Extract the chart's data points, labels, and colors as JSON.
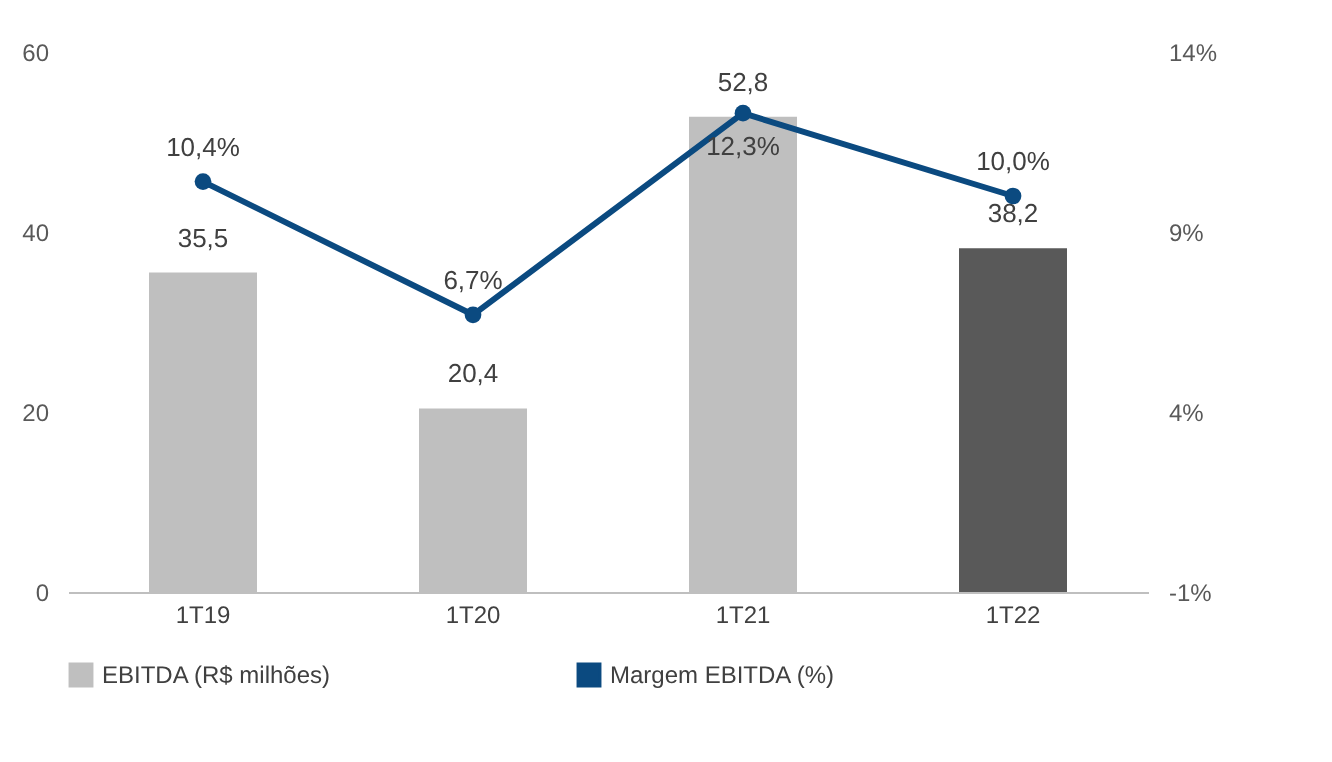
{
  "chart_data": {
    "type": "bar",
    "categories": [
      "1T19",
      "1T20",
      "1T21",
      "1T22"
    ],
    "series": [
      {
        "name": "EBITDA (R$ milhões)",
        "type": "bar",
        "color": "#bfbfbf",
        "colors": [
          "#bfbfbf",
          "#bfbfbf",
          "#bfbfbf",
          "#595959"
        ],
        "values": [
          35.5,
          20.4,
          52.8,
          38.2
        ],
        "value_labels": [
          "35,5",
          "20,4",
          "52,8",
          "38,2"
        ]
      },
      {
        "name": "Margem EBITDA (%)",
        "type": "line",
        "axis": "y2",
        "color": "#0b4a80",
        "marker": "circle",
        "values": [
          10.4,
          6.7,
          12.3,
          10.0
        ],
        "value_labels": [
          "10,4%",
          "6,7%",
          "12,3%",
          "10,0%"
        ]
      }
    ],
    "ylim": [
      0,
      60
    ],
    "yticks": [
      0,
      20,
      40,
      60
    ],
    "y2lim": [
      -1,
      14
    ],
    "y2ticks": [
      {
        "value": -1,
        "label": "-1%"
      },
      {
        "value": 4,
        "label": "4%"
      },
      {
        "value": 9,
        "label": "9%"
      },
      {
        "value": 14,
        "label": "14%"
      }
    ],
    "grid": false,
    "legend": "bottom"
  }
}
